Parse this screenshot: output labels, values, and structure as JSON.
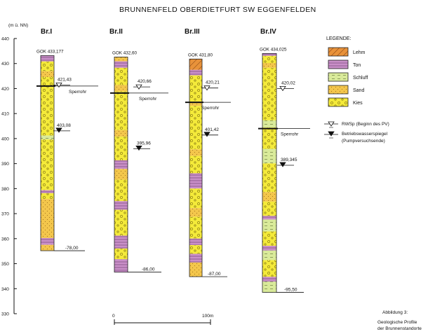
{
  "title": "BRUNNENFELD OBERDIETFURT SW EGGENFELDEN",
  "axis": {
    "unit": "(m ü. NN)",
    "ticks": [
      440,
      430,
      420,
      410,
      400,
      390,
      380,
      370,
      360,
      350,
      340,
      330
    ]
  },
  "wells": [
    {
      "name": "Br.I",
      "gok": "GOK 433,177",
      "rwsp": "421,43",
      "pump": "403,08",
      "depth": "-78,00"
    },
    {
      "name": "Br.II",
      "gok": "GOK 432,60",
      "rwsp": "420,66",
      "pump": "395,96",
      "depth": "-86,00"
    },
    {
      "name": "Br.III",
      "gok": "GOK 431,80",
      "rwsp": "420,21",
      "pump": "401,42",
      "depth": "-87,00"
    },
    {
      "name": "Br.IV",
      "gok": "GOK 434,025",
      "rwsp": "420,02",
      "pump": "389,345",
      "depth": "-95,50"
    }
  ],
  "sperrohr_label": "Sperrohr",
  "legend": {
    "title": "LEGENDE:",
    "items": [
      {
        "label": "Lehm",
        "color": "#e8923a"
      },
      {
        "label": "Ton",
        "color": "#c98fc8"
      },
      {
        "label": "Schluff",
        "color": "#d9ea9a"
      },
      {
        "label": "Sand",
        "color": "#f3c64c"
      },
      {
        "label": "Kies",
        "color": "#f4ea3a"
      }
    ],
    "rwsp_label": "RWSp (Beginn des PV)",
    "pump_label_1": "Betriebswasserspiegel",
    "pump_label_2": "(Pumpversuchsende)"
  },
  "scale": {
    "start": "0",
    "end": "100m"
  },
  "caption": {
    "line1": "Abbildung 3:",
    "line2": "Geologische Profile",
    "line3": "der Brunnenstandorte"
  }
}
